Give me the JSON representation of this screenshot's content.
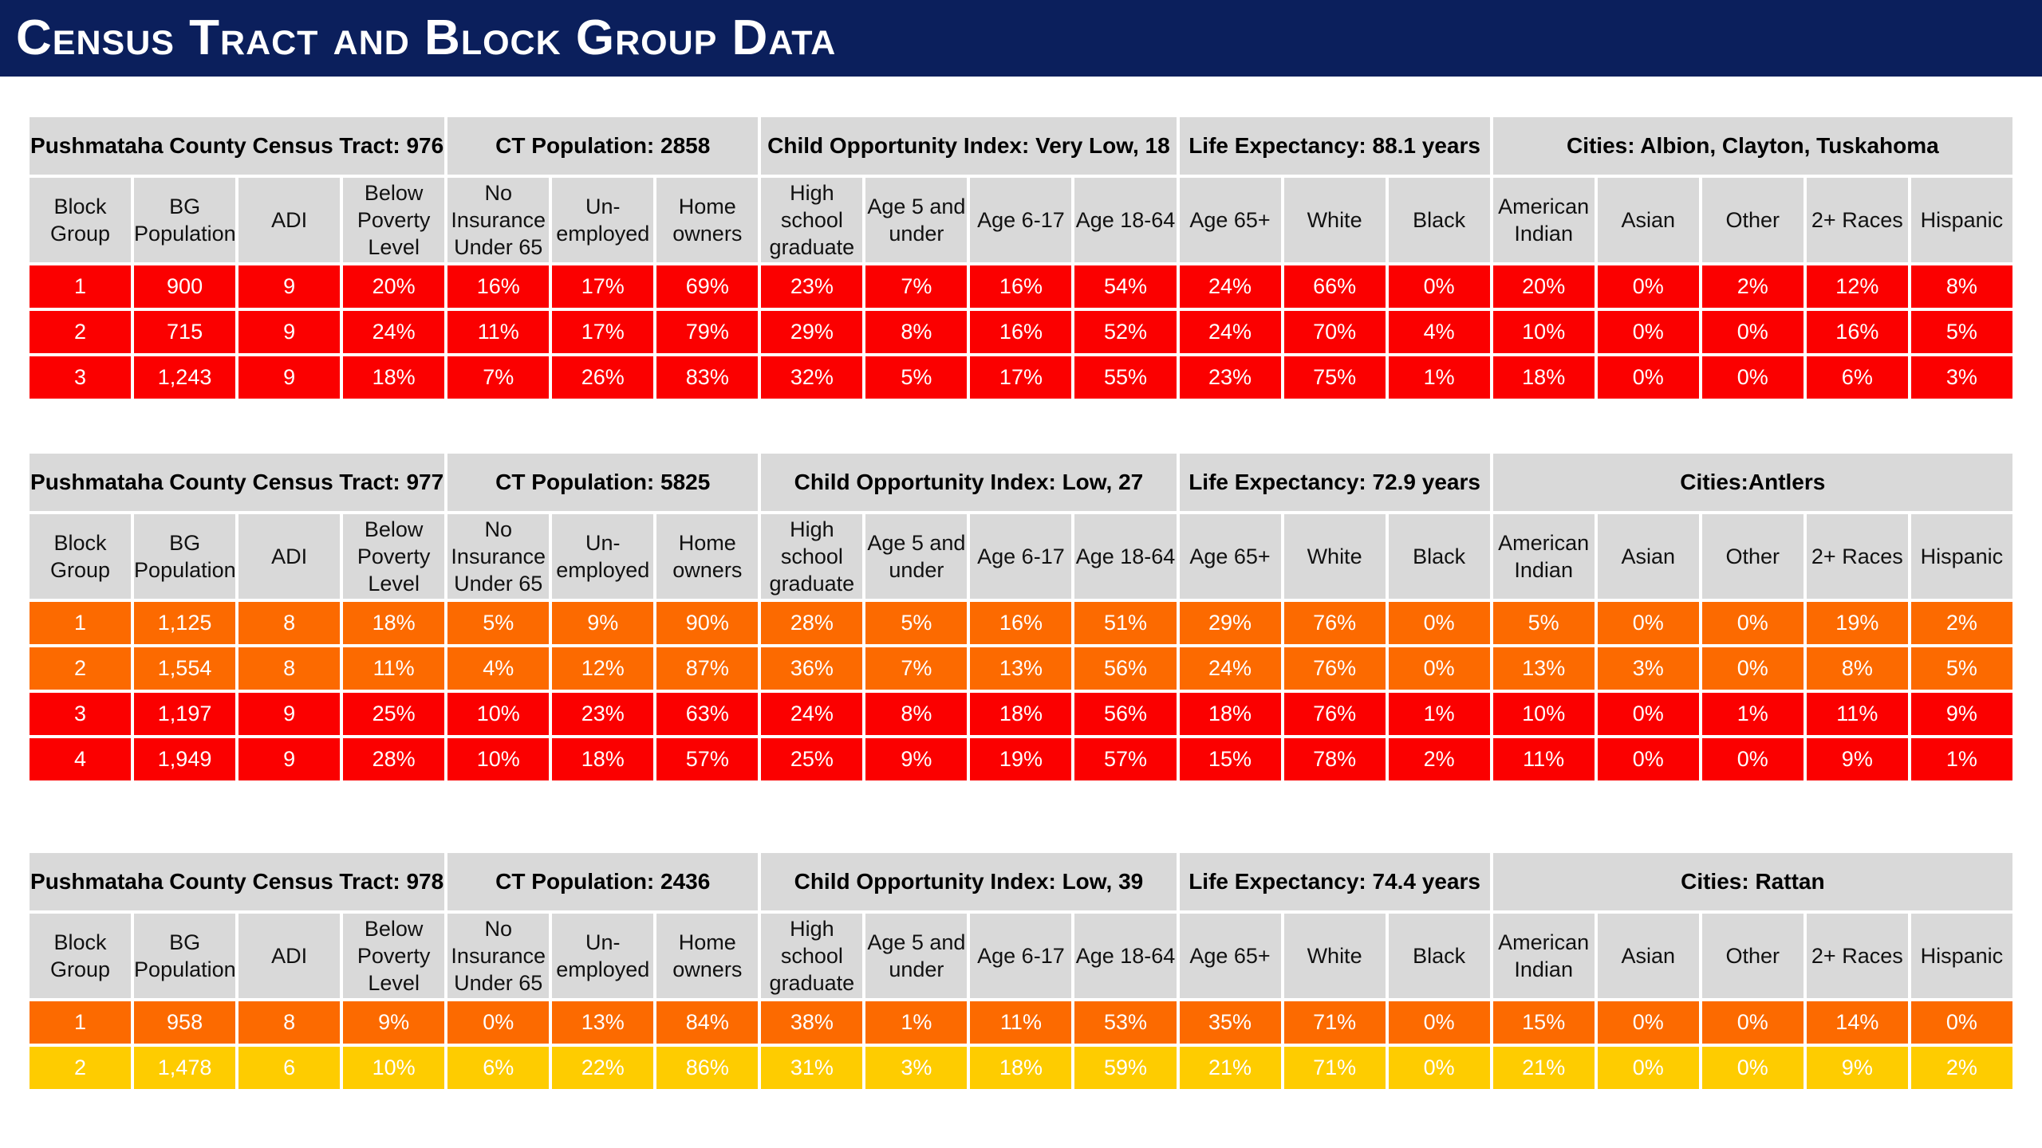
{
  "title": "Census Tract and Block Group Data",
  "columns": [
    "Block Group",
    "BG Population",
    "ADI",
    "Below Poverty Level",
    "No Insurance Under 65",
    "Un-employed",
    "Home owners",
    "High school graduate",
    "Age 5 and under",
    "Age 6-17",
    "Age 18-64",
    "Age 65+",
    "White",
    "Black",
    "American Indian",
    "Asian",
    "Other",
    "2+ Races",
    "Hispanic"
  ],
  "colors": {
    "header_bg": "#0b1f5c",
    "cell_bg": "#d9d9d9",
    "red": "#fb0000",
    "orange": "#fc6a00",
    "yellow": "#fecc00"
  },
  "tracts": [
    {
      "tract_label": "Pushmataha County Census Tract: 976",
      "population_label": "CT Population: 2858",
      "coi_label": "Child Opportunity Index: Very Low, 18",
      "life_label": "Life Expectancy: 88.1 years",
      "cities_label": "Cities: Albion, Clayton, Tuskahoma",
      "rows": [
        {
          "level": "red",
          "cells": [
            "1",
            "900",
            "9",
            "20%",
            "16%",
            "17%",
            "69%",
            "23%",
            "7%",
            "16%",
            "54%",
            "24%",
            "66%",
            "0%",
            "20%",
            "0%",
            "2%",
            "12%",
            "8%"
          ]
        },
        {
          "level": "red",
          "cells": [
            "2",
            "715",
            "9",
            "24%",
            "11%",
            "17%",
            "79%",
            "29%",
            "8%",
            "16%",
            "52%",
            "24%",
            "70%",
            "4%",
            "10%",
            "0%",
            "0%",
            "16%",
            "5%"
          ]
        },
        {
          "level": "red",
          "cells": [
            "3",
            "1,243",
            "9",
            "18%",
            "7%",
            "26%",
            "83%",
            "32%",
            "5%",
            "17%",
            "55%",
            "23%",
            "75%",
            "1%",
            "18%",
            "0%",
            "0%",
            "6%",
            "3%"
          ]
        }
      ]
    },
    {
      "tract_label": "Pushmataha County Census Tract: 977",
      "population_label": "CT Population: 5825",
      "coi_label": "Child Opportunity Index: Low, 27",
      "life_label": "Life Expectancy: 72.9 years",
      "cities_label": "Cities:Antlers",
      "rows": [
        {
          "level": "orange",
          "cells": [
            "1",
            "1,125",
            "8",
            "18%",
            "5%",
            "9%",
            "90%",
            "28%",
            "5%",
            "16%",
            "51%",
            "29%",
            "76%",
            "0%",
            "5%",
            "0%",
            "0%",
            "19%",
            "2%"
          ]
        },
        {
          "level": "orange",
          "cells": [
            "2",
            "1,554",
            "8",
            "11%",
            "4%",
            "12%",
            "87%",
            "36%",
            "7%",
            "13%",
            "56%",
            "24%",
            "76%",
            "0%",
            "13%",
            "3%",
            "0%",
            "8%",
            "5%"
          ]
        },
        {
          "level": "red",
          "cells": [
            "3",
            "1,197",
            "9",
            "25%",
            "10%",
            "23%",
            "63%",
            "24%",
            "8%",
            "18%",
            "56%",
            "18%",
            "76%",
            "1%",
            "10%",
            "0%",
            "1%",
            "11%",
            "9%"
          ]
        },
        {
          "level": "red",
          "cells": [
            "4",
            "1,949",
            "9",
            "28%",
            "10%",
            "18%",
            "57%",
            "25%",
            "9%",
            "19%",
            "57%",
            "15%",
            "78%",
            "2%",
            "11%",
            "0%",
            "0%",
            "9%",
            "1%"
          ]
        }
      ]
    },
    {
      "tract_label": "Pushmataha County Census Tract: 978",
      "population_label": "CT Population: 2436",
      "coi_label": "Child Opportunity Index: Low, 39",
      "life_label": "Life Expectancy: 74.4 years",
      "cities_label": "Cities: Rattan",
      "rows": [
        {
          "level": "orange",
          "cells": [
            "1",
            "958",
            "8",
            "9%",
            "0%",
            "13%",
            "84%",
            "38%",
            "1%",
            "11%",
            "53%",
            "35%",
            "71%",
            "0%",
            "15%",
            "0%",
            "0%",
            "14%",
            "0%"
          ]
        },
        {
          "level": "yellow",
          "cells": [
            "2",
            "1,478",
            "6",
            "10%",
            "6%",
            "22%",
            "86%",
            "31%",
            "3%",
            "18%",
            "59%",
            "21%",
            "71%",
            "0%",
            "21%",
            "0%",
            "0%",
            "9%",
            "2%"
          ]
        }
      ]
    }
  ]
}
